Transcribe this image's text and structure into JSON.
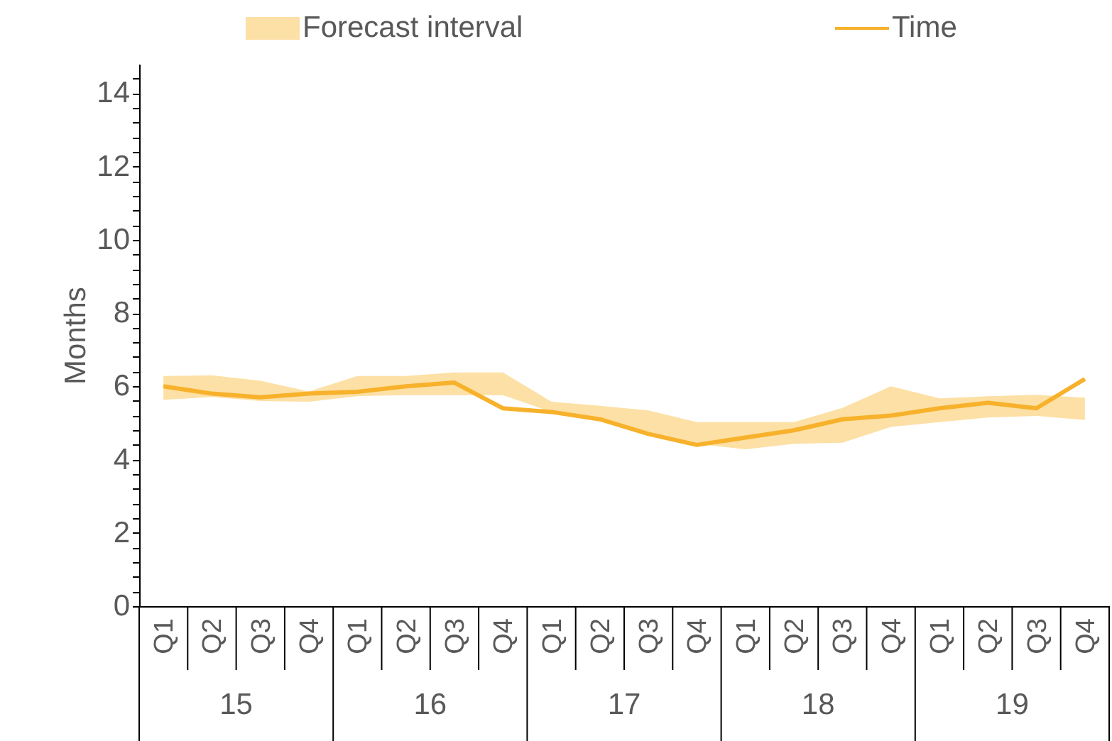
{
  "chart_data": {
    "type": "line",
    "ylabel": "Months",
    "categories": [
      "Q1",
      "Q2",
      "Q3",
      "Q4",
      "Q1",
      "Q2",
      "Q3",
      "Q4",
      "Q1",
      "Q2",
      "Q3",
      "Q4",
      "Q1",
      "Q2",
      "Q3",
      "Q4",
      "Q1",
      "Q2",
      "Q3",
      "Q4"
    ],
    "annotations": [
      "15",
      "16",
      "17",
      "18",
      "19"
    ],
    "series": [
      {
        "name": "Forecast interval",
        "type": "area",
        "color": "#fde0a5",
        "values": [
          null,
          null,
          null,
          null,
          null,
          null,
          null,
          null,
          null,
          null,
          null,
          null,
          null,
          null,
          null,
          null,
          null,
          null,
          null,
          null
        ],
        "lower": [
          5.63,
          5.71,
          5.6,
          5.58,
          5.73,
          5.76,
          5.76,
          5.76,
          5.3,
          5.15,
          4.65,
          4.43,
          4.28,
          4.43,
          4.46,
          4.89,
          5.02,
          5.15,
          5.19,
          5.08
        ],
        "upper": [
          6.28,
          6.3,
          6.15,
          5.86,
          6.28,
          6.28,
          6.38,
          6.38,
          5.58,
          5.47,
          5.34,
          5.02,
          5.02,
          5.02,
          5.41,
          6.0,
          5.67,
          5.73,
          5.77,
          5.69
        ]
      },
      {
        "name": "Time",
        "color": "#f7b12b",
        "values": [
          6.0,
          5.8,
          5.7,
          5.8,
          5.85,
          6.0,
          6.1,
          5.4,
          5.3,
          5.1,
          4.7,
          4.4,
          4.6,
          4.8,
          5.1,
          5.2,
          5.4,
          5.55,
          5.4,
          6.2
        ]
      }
    ],
    "ylim": [
      0,
      14.8
    ],
    "yticks": [
      0,
      {
        "value": 0.4,
        "label": null
      },
      {
        "value": 0.8,
        "label": null
      },
      {
        "value": 1.2,
        "label": null
      },
      {
        "value": 1.6,
        "label": null
      },
      2,
      {
        "value": 2.4,
        "label": null
      },
      {
        "value": 2.8,
        "label": null
      },
      {
        "value": 3.2,
        "label": null
      },
      {
        "value": 3.6,
        "label": null
      },
      4,
      {
        "value": 4.4,
        "label": null
      },
      {
        "value": 4.8,
        "label": null
      },
      {
        "value": 5.2,
        "label": null
      },
      {
        "value": 5.6,
        "label": null
      },
      6,
      {
        "value": 6.4,
        "label": null
      },
      {
        "value": 6.8,
        "label": null
      },
      {
        "value": 7.2,
        "label": null
      },
      {
        "value": 7.6,
        "label": null
      },
      8,
      {
        "value": 8.4,
        "label": null
      },
      {
        "value": 8.8,
        "label": null
      },
      {
        "value": 9.2,
        "label": null
      },
      {
        "value": 9.6,
        "label": null
      },
      10,
      {
        "value": 10.4,
        "label": null
      },
      {
        "value": 10.8,
        "label": null
      },
      {
        "value": 11.2,
        "label": null
      },
      {
        "value": 11.6,
        "label": null
      },
      12,
      {
        "value": 12.4,
        "label": null
      },
      {
        "value": 12.8,
        "label": null
      },
      {
        "value": 13.2,
        "label": null
      },
      {
        "value": 13.6,
        "label": null
      },
      14,
      {
        "value": 14.4,
        "label": null
      }
    ],
    "grid": false,
    "legend": "top",
    "marker": "none",
    "line_style": "solid"
  }
}
